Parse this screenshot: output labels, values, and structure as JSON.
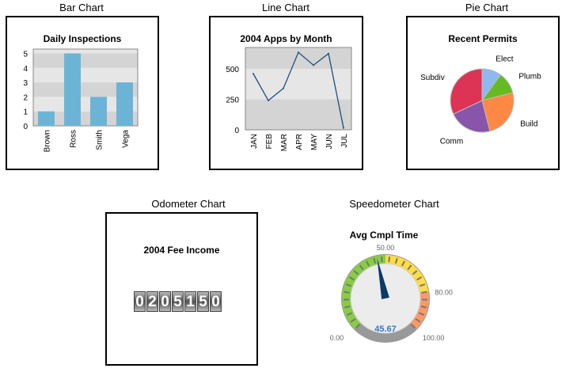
{
  "captions": {
    "bar": "Bar Chart",
    "line": "Line Chart",
    "pie": "Pie Chart",
    "odometer": "Odometer Chart",
    "speedometer": "Speedometer Chart"
  },
  "chart_data": [
    {
      "type": "bar",
      "title": "Daily Inspections",
      "categories": [
        "Brown",
        "Ross",
        "Smith",
        "Vega"
      ],
      "values": [
        1,
        5,
        2,
        3
      ],
      "ylim": [
        0,
        5.3
      ],
      "yticks": [
        "0",
        "1",
        "2",
        "3",
        "4",
        "5"
      ],
      "bar_color": "#6cb4d6",
      "grid": "banded"
    },
    {
      "type": "line",
      "title": "2004 Apps by Month",
      "categories": [
        "JAN",
        "FEB",
        "MAR",
        "APR",
        "MAY",
        "JUN",
        "JUL"
      ],
      "values": [
        460,
        240,
        340,
        635,
        530,
        625,
        15
      ],
      "ylim": [
        0,
        675
      ],
      "yticks": [
        "0",
        "250",
        "500"
      ],
      "line_color": "#1f4e7a",
      "grid": "banded"
    },
    {
      "type": "pie",
      "title": "Recent Permits",
      "labels": [
        "Elect",
        "Plumb",
        "Build",
        "Comm",
        "Subdiv"
      ],
      "values": [
        10,
        11,
        25,
        22,
        32
      ],
      "colors": [
        "#8fb8f0",
        "#66bb22",
        "#ff8844",
        "#8855aa",
        "#dd3355"
      ]
    },
    {
      "type": "odometer",
      "title": "2004 Fee Income",
      "value": "0205150"
    },
    {
      "type": "gauge",
      "title": "Avg Cmpl Time",
      "value": 45.67,
      "value_label": "45.67",
      "min": 0,
      "max": 100,
      "tick_labels": [
        "0.00",
        "50.00",
        "80.00",
        "100.00"
      ],
      "ranges": [
        {
          "from": 0,
          "to": 50,
          "color": "#88cc44"
        },
        {
          "from": 50,
          "to": 80,
          "color": "#ffdd44"
        },
        {
          "from": 80,
          "to": 100,
          "color": "#ff9966"
        }
      ]
    }
  ]
}
